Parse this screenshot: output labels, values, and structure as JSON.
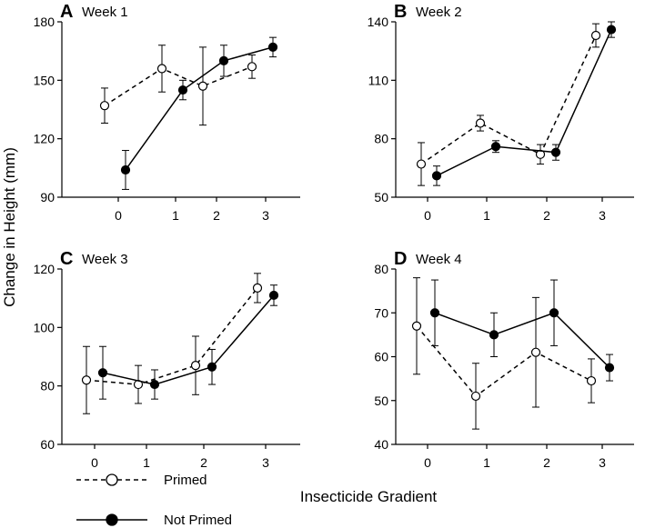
{
  "figure": {
    "ylabel": "Change in Height (mm)",
    "xlabel": "Insecticide Gradient"
  },
  "legend": {
    "primed": "Primed",
    "not_primed": "Not Primed"
  },
  "chart_data": [
    {
      "type": "line",
      "panel": "A",
      "title": "Week 1",
      "categories": [
        "0",
        "1",
        "2",
        "3"
      ],
      "ylim": [
        90,
        180
      ],
      "yticks": [
        "90",
        "120",
        "150",
        "180"
      ],
      "series": [
        {
          "name": "Primed",
          "values": [
            137,
            156,
            147,
            157
          ],
          "errors": [
            9,
            12,
            20,
            6
          ]
        },
        {
          "name": "Not Primed",
          "values": [
            104,
            145,
            160,
            167
          ],
          "errors": [
            10,
            5,
            8,
            5
          ]
        }
      ]
    },
    {
      "type": "line",
      "panel": "B",
      "title": "Week 2",
      "categories": [
        "0",
        "1",
        "2",
        "3"
      ],
      "ylim": [
        50,
        140
      ],
      "yticks": [
        "50",
        "80",
        "110",
        "140"
      ],
      "series": [
        {
          "name": "Primed",
          "values": [
            67,
            88,
            72,
            133
          ],
          "errors": [
            11,
            4,
            5,
            6
          ]
        },
        {
          "name": "Not Primed",
          "values": [
            61,
            76,
            73,
            136
          ],
          "errors": [
            5,
            3,
            4,
            4
          ]
        }
      ]
    },
    {
      "type": "line",
      "panel": "C",
      "title": "Week 3",
      "categories": [
        "0",
        "1",
        "2",
        "3"
      ],
      "ylim": [
        60,
        120
      ],
      "yticks": [
        "60",
        "80",
        "100",
        "120"
      ],
      "series": [
        {
          "name": "Primed",
          "values": [
            82,
            80.5,
            87,
            113.5
          ],
          "errors": [
            11.5,
            6.5,
            10,
            5
          ]
        },
        {
          "name": "Not Primed",
          "values": [
            84.5,
            80.5,
            86.5,
            111
          ],
          "errors": [
            9,
            5,
            6,
            3.5
          ]
        }
      ]
    },
    {
      "type": "line",
      "panel": "D",
      "title": "Week 4",
      "categories": [
        "0",
        "1",
        "2",
        "3"
      ],
      "ylim": [
        40,
        80
      ],
      "yticks": [
        "40",
        "50",
        "60",
        "70",
        "80"
      ],
      "series": [
        {
          "name": "Primed",
          "values": [
            67,
            51,
            61,
            54.5
          ],
          "errors": [
            11,
            7.5,
            12.5,
            5
          ]
        },
        {
          "name": "Not Primed",
          "values": [
            70,
            65,
            70,
            57.5
          ],
          "errors": [
            7.5,
            5,
            7.5,
            3
          ]
        }
      ]
    }
  ]
}
